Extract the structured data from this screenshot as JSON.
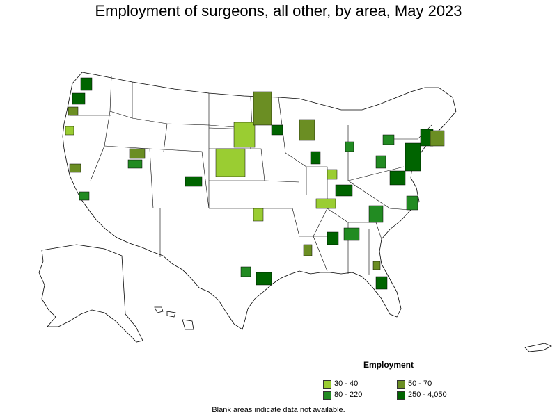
{
  "title": "Employment of surgeons, all other, by area, May 2023",
  "legend": {
    "title": "Employment",
    "items": [
      {
        "label": "30 - 40",
        "color": "#9acd32"
      },
      {
        "label": "50 - 70",
        "color": "#6b8e23"
      },
      {
        "label": "80 - 220",
        "color": "#228b22"
      },
      {
        "label": "250 - 4,050",
        "color": "#006400"
      }
    ]
  },
  "footnote": "Blank areas indicate data not available.",
  "regions": [
    {
      "name": "seattle",
      "class": "250 - 4,050"
    },
    {
      "name": "portland",
      "class": "250 - 4,050"
    },
    {
      "name": "salem",
      "class": "50 - 70"
    },
    {
      "name": "bend",
      "class": "30 - 40"
    },
    {
      "name": "sacramento",
      "class": "50 - 70"
    },
    {
      "name": "los-angeles",
      "class": "80 - 220"
    },
    {
      "name": "salt-lake-city",
      "class": "50 - 70"
    },
    {
      "name": "provo",
      "class": "80 - 220"
    },
    {
      "name": "denver",
      "class": "250 - 4,050"
    },
    {
      "name": "western-kansas-nebraska",
      "class": "30 - 40"
    },
    {
      "name": "south-dakota",
      "class": "30 - 40"
    },
    {
      "name": "north-dakota",
      "class": "50 - 70"
    },
    {
      "name": "minneapolis",
      "class": "250 - 4,050"
    },
    {
      "name": "wisconsin",
      "class": "50 - 70"
    },
    {
      "name": "chicago",
      "class": "250 - 4,050"
    },
    {
      "name": "detroit",
      "class": "80 - 220"
    },
    {
      "name": "houston",
      "class": "250 - 4,050"
    },
    {
      "name": "dallas",
      "class": "80 - 220"
    },
    {
      "name": "atlanta",
      "class": "80 - 220"
    },
    {
      "name": "birmingham",
      "class": "250 - 4,050"
    },
    {
      "name": "florida",
      "class": "250 - 4,050"
    },
    {
      "name": "new-york",
      "class": "250 - 4,050"
    },
    {
      "name": "boston",
      "class": "250 - 4,050"
    }
  ]
}
